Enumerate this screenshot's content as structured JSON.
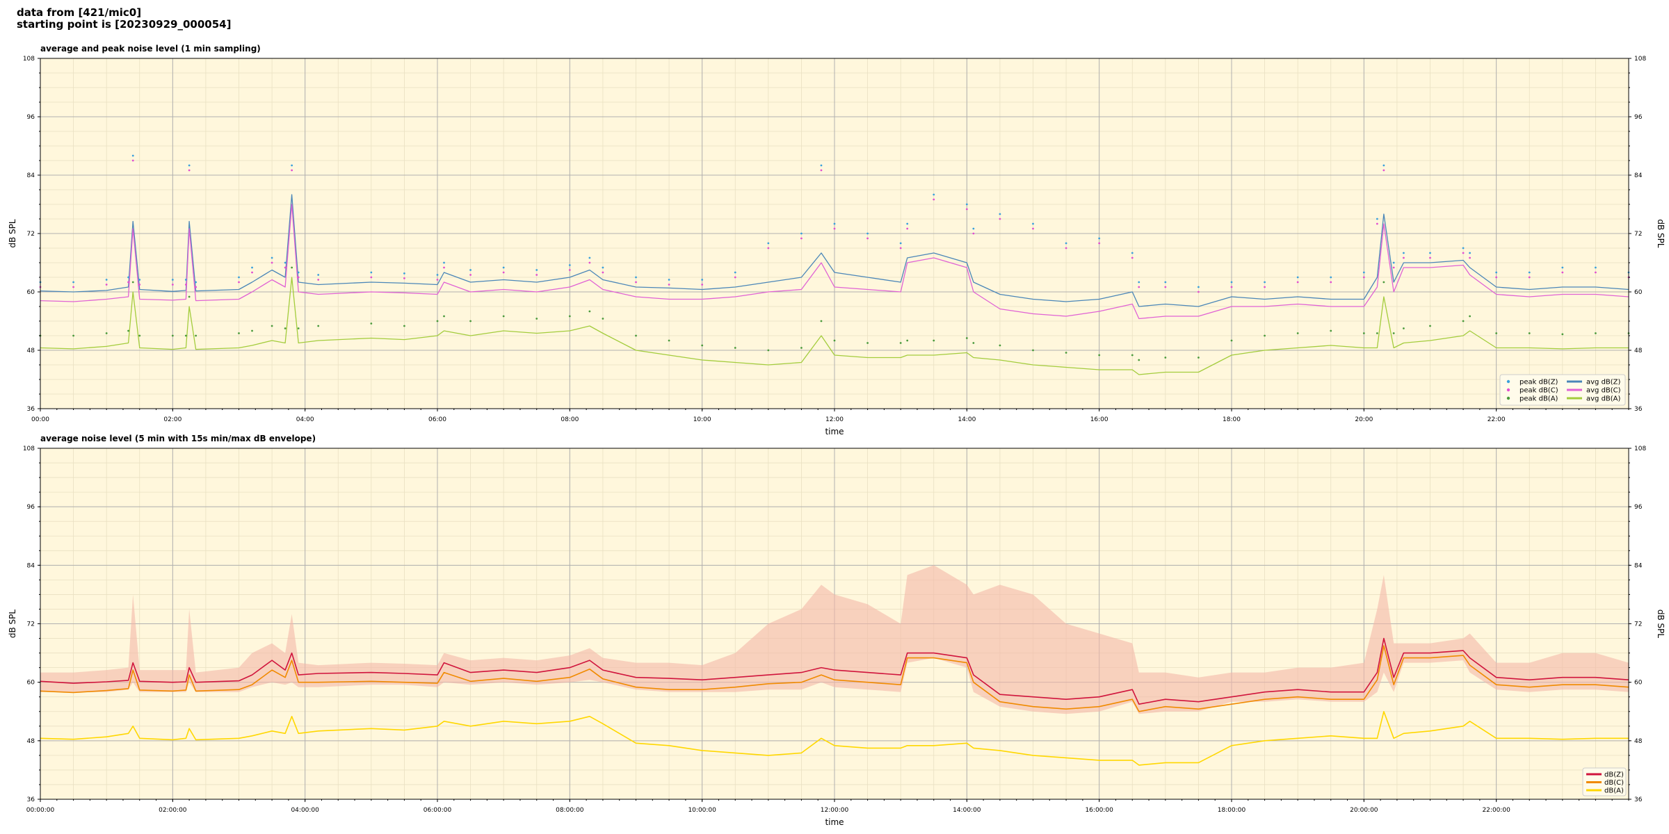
{
  "header": {
    "line1": "data from [421/mic0]",
    "line2": "starting point is [20230929_000054]"
  },
  "chart_data": [
    {
      "type": "line",
      "title": "average and peak noise level (1 min sampling)",
      "xlabel": "time",
      "ylabel": "dB SPL",
      "ylabel_right": "dB SPL",
      "xlim_hours": [
        0,
        24
      ],
      "ylim": [
        36,
        108
      ],
      "yticks": [
        36,
        48,
        60,
        72,
        84,
        96,
        108
      ],
      "xticks": [
        "00:00",
        "02:00",
        "04:00",
        "06:00",
        "08:00",
        "10:00",
        "12:00",
        "14:00",
        "16:00",
        "18:00",
        "20:00",
        "22:00"
      ],
      "grid": true,
      "background": "#fff7dc",
      "legend_position": "lower-right",
      "x_hours": [
        0,
        0.5,
        1,
        1.33,
        1.4,
        1.5,
        2,
        2.2,
        2.25,
        2.35,
        3,
        3.2,
        3.5,
        3.7,
        3.8,
        3.9,
        4.2,
        5,
        5.5,
        6,
        6.1,
        6.5,
        7,
        7.5,
        8,
        8.3,
        8.5,
        9,
        9.5,
        10,
        10.5,
        11,
        11.5,
        11.8,
        12,
        12.5,
        13,
        13.1,
        13.5,
        14,
        14.1,
        14.5,
        15,
        15.5,
        16,
        16.5,
        16.6,
        17,
        17.5,
        18,
        18.5,
        19,
        19.5,
        20,
        20.2,
        20.3,
        20.45,
        20.6,
        21,
        21.5,
        21.6,
        22,
        22.5,
        23,
        23.5,
        24
      ],
      "series": [
        {
          "name": "avg dB(Z)",
          "kind": "line",
          "color": "#4a86b8",
          "values": [
            60.2,
            60,
            60.3,
            61,
            74.5,
            60.5,
            60.1,
            60.3,
            74.5,
            60.2,
            60.5,
            62,
            64.5,
            63,
            80,
            62,
            61.5,
            62,
            61.8,
            61.5,
            64,
            62,
            62.5,
            62,
            63,
            64.5,
            62.5,
            61,
            60.8,
            60.5,
            61,
            62,
            63,
            68,
            64,
            63,
            62,
            67,
            68,
            66,
            62,
            59.5,
            58.5,
            58,
            58.5,
            60,
            57,
            57.5,
            57,
            59,
            58.5,
            59,
            58.5,
            58.5,
            63,
            76,
            62,
            66,
            66,
            66.5,
            65,
            61,
            60.5,
            61,
            61,
            60.5
          ]
        },
        {
          "name": "avg dB(C)",
          "kind": "line",
          "color": "#e062d4",
          "values": [
            58.2,
            58,
            58.5,
            59,
            73,
            58.5,
            58.3,
            58.5,
            73,
            58.2,
            58.5,
            60,
            62.5,
            61,
            78,
            60,
            59.5,
            60,
            59.8,
            59.5,
            62,
            60,
            60.5,
            60,
            61,
            62.5,
            60.5,
            59,
            58.5,
            58.5,
            59,
            60,
            60.5,
            66,
            61,
            60.5,
            60,
            66,
            67,
            65,
            60,
            56.5,
            55.5,
            55,
            56,
            57.5,
            54.5,
            55,
            55,
            57,
            57,
            57.5,
            57,
            57,
            61,
            74,
            60,
            65,
            65,
            65.5,
            63.5,
            59.5,
            59,
            59.5,
            59.5,
            59
          ]
        },
        {
          "name": "avg dB(A)",
          "kind": "line",
          "color": "#a3cc3c",
          "values": [
            48.5,
            48.3,
            48.8,
            49.5,
            60,
            48.5,
            48.2,
            48.5,
            57,
            48.2,
            48.5,
            49,
            50,
            49.5,
            63,
            49.5,
            50,
            50.5,
            50.2,
            51,
            52,
            51,
            52,
            51.5,
            52,
            53,
            51.5,
            48,
            47,
            46,
            45.5,
            45,
            45.5,
            51,
            47,
            46.5,
            46.5,
            47,
            47,
            47.5,
            46.5,
            46,
            45,
            44.5,
            44,
            44,
            43,
            43.5,
            43.5,
            47,
            48,
            48.5,
            49,
            48.5,
            48.5,
            59,
            48.5,
            49.5,
            50,
            51,
            52,
            48.5,
            48.5,
            48.3,
            48.5,
            48.5
          ]
        },
        {
          "name": "peak dB(Z)",
          "kind": "scatter",
          "color": "#3aa0dc",
          "values": [
            62,
            62,
            62.5,
            63,
            88,
            62.5,
            62.5,
            62.5,
            86,
            62,
            63,
            65,
            67,
            66,
            86,
            64,
            63.5,
            64,
            63.8,
            63.5,
            66,
            64.5,
            65,
            64.5,
            65.5,
            67,
            65,
            63,
            62.5,
            62.5,
            64,
            70,
            72,
            86,
            74,
            72,
            70,
            74,
            80,
            78,
            73,
            76,
            74,
            70,
            71,
            68,
            62,
            62,
            61,
            62,
            62,
            63,
            63,
            64,
            75,
            86,
            66,
            68,
            68,
            69,
            68,
            64,
            64,
            65,
            65,
            64
          ]
        },
        {
          "name": "peak dB(C)",
          "kind": "scatter",
          "color": "#e24ed0",
          "values": [
            61,
            61,
            61.5,
            62,
            87,
            61.5,
            61.5,
            61.5,
            85,
            61,
            62,
            64,
            66,
            65,
            85,
            63,
            62.5,
            63,
            62.8,
            62.5,
            65,
            63.5,
            64,
            63.5,
            64.5,
            66,
            64,
            62,
            61.5,
            61.5,
            63,
            69,
            71,
            85,
            73,
            71,
            69,
            73,
            79,
            77,
            72,
            75,
            73,
            69,
            70,
            67,
            61,
            61,
            60,
            61,
            61,
            62,
            62,
            63,
            74,
            85,
            65,
            67,
            67,
            68,
            67,
            63,
            63,
            64,
            64,
            63
          ]
        },
        {
          "name": "peak dB(A)",
          "kind": "scatter",
          "color": "#4a9a3c",
          "values": [
            51,
            51,
            51.5,
            52,
            62,
            51,
            51,
            51,
            59,
            51,
            51.5,
            52,
            53,
            52.5,
            65,
            52.5,
            53,
            53.5,
            53,
            54,
            55,
            54,
            55,
            54.5,
            55,
            56,
            54.5,
            51,
            50,
            49,
            48.5,
            48,
            48.5,
            54,
            50,
            49.5,
            49.5,
            50,
            50,
            50.5,
            49.5,
            49,
            48,
            47.5,
            47,
            47,
            46,
            46.5,
            46.5,
            50,
            51,
            51.5,
            52,
            51.5,
            51.5,
            62,
            51.5,
            52.5,
            53,
            54,
            55,
            51.5,
            51.5,
            51.3,
            51.5,
            51.5
          ]
        }
      ]
    },
    {
      "type": "line",
      "title": "average noise level (5 min with 15s min/max dB envelope)",
      "xlabel": "time",
      "ylabel": "dB SPL",
      "ylabel_right": "dB SPL",
      "xlim_hours": [
        0,
        24
      ],
      "ylim": [
        36,
        108
      ],
      "yticks": [
        36,
        48,
        60,
        72,
        84,
        96,
        108
      ],
      "xticks": [
        "00:00:00",
        "02:00:00",
        "04:00:00",
        "06:00:00",
        "08:00:00",
        "10:00:00",
        "12:00:00",
        "14:00:00",
        "16:00:00",
        "18:00:00",
        "20:00:00",
        "22:00:00"
      ],
      "grid": true,
      "background": "#fff7dc",
      "legend_position": "lower-right",
      "x_hours": [
        0,
        0.5,
        1,
        1.33,
        1.4,
        1.5,
        2,
        2.2,
        2.25,
        2.35,
        3,
        3.2,
        3.5,
        3.7,
        3.8,
        3.9,
        4.2,
        5,
        5.5,
        6,
        6.1,
        6.5,
        7,
        7.5,
        8,
        8.3,
        8.5,
        9,
        9.5,
        10,
        10.5,
        11,
        11.5,
        11.8,
        12,
        12.5,
        13,
        13.1,
        13.5,
        14,
        14.1,
        14.5,
        15,
        15.5,
        16,
        16.5,
        16.6,
        17,
        17.5,
        18,
        18.5,
        19,
        19.5,
        20,
        20.2,
        20.3,
        20.45,
        20.6,
        21,
        21.5,
        21.6,
        22,
        22.5,
        23,
        23.5,
        24
      ],
      "envelope": {
        "color": "#f4b8a8",
        "max": [
          62,
          62,
          62.5,
          63,
          78,
          62.5,
          62.5,
          62.5,
          75,
          62,
          63,
          66,
          68,
          66,
          74,
          64,
          63.5,
          64,
          63.8,
          63.5,
          66,
          64.5,
          65,
          64.5,
          65.5,
          67,
          65,
          64,
          64,
          63.5,
          66,
          72,
          75,
          80,
          78,
          76,
          72,
          82,
          84,
          80,
          78,
          80,
          78,
          72,
          70,
          68,
          62,
          62,
          61,
          62,
          62,
          63,
          63,
          64,
          75,
          82,
          68,
          68,
          68,
          69,
          70,
          64,
          64,
          66,
          66,
          64
        ],
        "min": [
          58,
          58,
          58,
          58.5,
          60,
          58,
          58,
          58,
          60,
          58,
          58,
          59,
          60,
          59.5,
          60,
          59,
          59,
          59.5,
          59.5,
          59,
          60,
          59.5,
          60,
          59.5,
          60,
          60.5,
          60,
          58.5,
          58,
          58,
          58,
          58.5,
          58.5,
          60,
          59,
          58.5,
          58,
          64,
          65,
          63,
          58,
          55,
          54,
          53.5,
          54,
          56,
          53.5,
          54,
          54,
          56,
          56,
          56.5,
          56,
          56,
          58,
          62,
          58,
          64,
          64,
          64.5,
          62,
          58.5,
          58,
          58.5,
          58.5,
          58
        ]
      },
      "series": [
        {
          "name": "dB(Z)",
          "color": "#d0143c",
          "values": [
            60.2,
            59.8,
            60.1,
            60.4,
            64,
            60.2,
            60,
            60.1,
            63,
            60,
            60.3,
            61.5,
            64.5,
            62.5,
            66,
            61.5,
            61.8,
            62,
            61.8,
            61.5,
            64,
            62,
            62.5,
            62,
            63,
            64.5,
            62.5,
            61,
            60.8,
            60.5,
            61,
            61.5,
            62,
            63,
            62.5,
            62,
            61.5,
            66,
            66,
            65,
            61.5,
            57.5,
            57,
            56.5,
            57,
            58.5,
            55.5,
            56.5,
            56,
            57,
            58,
            58.5,
            58,
            58,
            62,
            69,
            61,
            66,
            66,
            66.5,
            65,
            61,
            60.5,
            61,
            61,
            60.5
          ]
        },
        {
          "name": "dB(C)",
          "color": "#f08a00",
          "values": [
            58.2,
            57.9,
            58.3,
            58.7,
            62.5,
            58.4,
            58.2,
            58.4,
            61.5,
            58.2,
            58.5,
            59.5,
            62.5,
            61,
            64.5,
            60,
            60,
            60.2,
            60,
            59.8,
            62,
            60.2,
            60.8,
            60.2,
            61,
            62.7,
            60.7,
            59,
            58.5,
            58.5,
            59,
            59.7,
            60,
            61.5,
            60.5,
            60,
            59.5,
            65,
            65,
            64,
            60,
            56,
            55,
            54.5,
            55,
            56.5,
            54,
            55,
            54.5,
            55.5,
            56.5,
            57,
            56.5,
            56.5,
            60.5,
            67.5,
            59.5,
            65,
            65,
            65.5,
            63.5,
            59.5,
            59,
            59.5,
            59.5,
            59
          ]
        },
        {
          "name": "dB(A)",
          "color": "#ffd700",
          "values": [
            48.5,
            48.3,
            48.8,
            49.5,
            51,
            48.5,
            48.2,
            48.5,
            50.5,
            48.2,
            48.5,
            49,
            50,
            49.5,
            53,
            49.5,
            50,
            50.5,
            50.2,
            51,
            52,
            51,
            52,
            51.5,
            52,
            53,
            51.5,
            47.5,
            47,
            46,
            45.5,
            45,
            45.5,
            48.5,
            47,
            46.5,
            46.5,
            47,
            47,
            47.5,
            46.5,
            46,
            45,
            44.5,
            44,
            44,
            43,
            43.5,
            43.5,
            47,
            48,
            48.5,
            49,
            48.5,
            48.5,
            54,
            48.5,
            49.5,
            50,
            51,
            52,
            48.5,
            48.5,
            48.3,
            48.5,
            48.5
          ]
        }
      ]
    }
  ]
}
